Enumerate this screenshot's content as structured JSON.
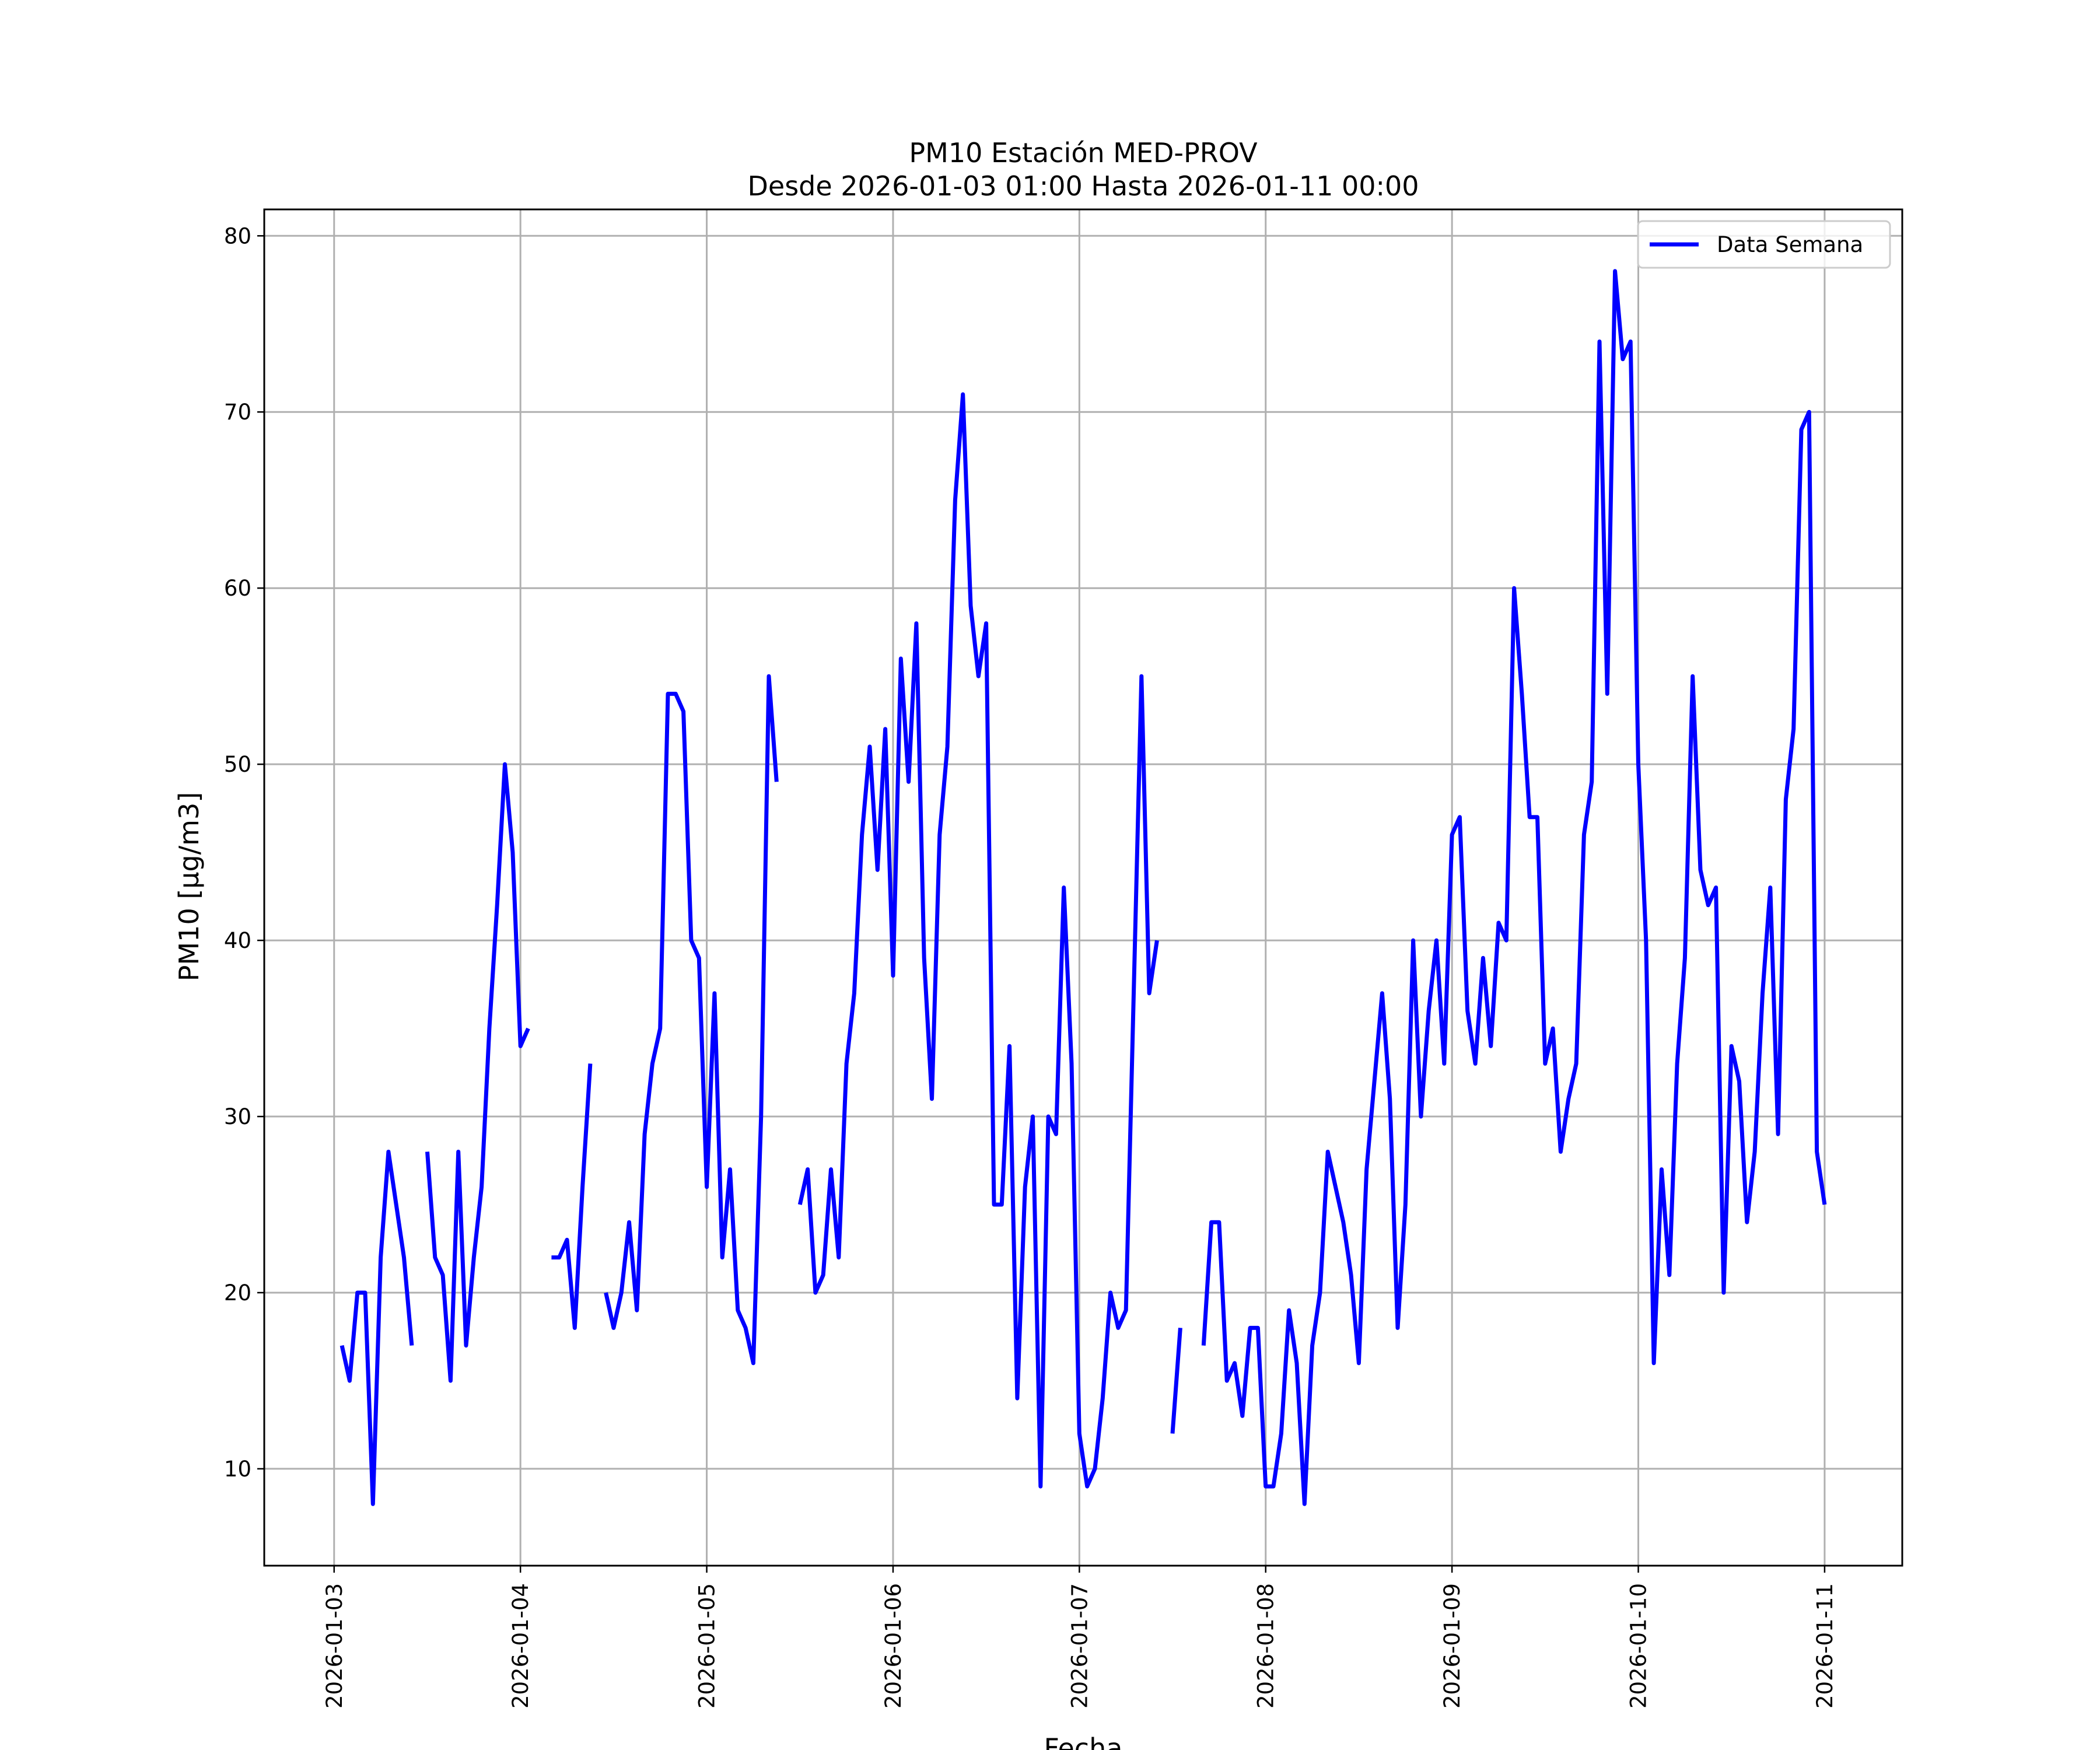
{
  "chart_data": {
    "type": "line",
    "title": "PM10 Estación MED-PROV",
    "subtitle": "Desde 2026-01-03 01:00 Hasta 2026-01-11 00:00",
    "xlabel": "Fecha",
    "ylabel": "PM10 [μg/m3]",
    "x_ticks": [
      "2026-01-03",
      "2026-01-04",
      "2026-01-05",
      "2026-01-06",
      "2026-01-07",
      "2026-01-08",
      "2026-01-09",
      "2026-01-10",
      "2026-01-11"
    ],
    "y_ticks": [
      10,
      20,
      30,
      40,
      50,
      60,
      70,
      80
    ],
    "xlim": [
      "2026-01-02 15:00",
      "2026-01-11 10:00"
    ],
    "ylim": [
      4.5,
      81.5
    ],
    "grid": true,
    "legend_position": "top-right",
    "line_color": "#0000ff",
    "series": [
      {
        "name": "Data Semana",
        "segments": [
          [
            [
              "2026-01-03 01:00",
              17
            ],
            [
              "2026-01-03 02:00",
              15
            ],
            [
              "2026-01-03 03:00",
              20
            ],
            [
              "2026-01-03 04:00",
              20
            ],
            [
              "2026-01-03 05:00",
              8
            ],
            [
              "2026-01-03 06:00",
              22
            ],
            [
              "2026-01-03 07:00",
              28
            ],
            [
              "2026-01-03 08:00",
              25
            ],
            [
              "2026-01-03 09:00",
              22
            ],
            [
              "2026-01-03 10:00",
              17
            ]
          ],
          [
            [
              "2026-01-03 12:00",
              28
            ],
            [
              "2026-01-03 13:00",
              22
            ],
            [
              "2026-01-03 14:00",
              21
            ],
            [
              "2026-01-03 15:00",
              15
            ],
            [
              "2026-01-03 16:00",
              28
            ],
            [
              "2026-01-03 17:00",
              17
            ],
            [
              "2026-01-03 18:00",
              22
            ],
            [
              "2026-01-03 19:00",
              26
            ],
            [
              "2026-01-03 20:00",
              35
            ],
            [
              "2026-01-03 21:00",
              42
            ],
            [
              "2026-01-03 22:00",
              50
            ],
            [
              "2026-01-03 23:00",
              45
            ],
            [
              "2026-01-04 00:00",
              34
            ],
            [
              "2026-01-04 01:00",
              35
            ]
          ],
          [
            [
              "2026-01-04 04:00",
              22
            ],
            [
              "2026-01-04 05:00",
              22
            ],
            [
              "2026-01-04 06:00",
              23
            ],
            [
              "2026-01-04 07:00",
              18
            ],
            [
              "2026-01-04 08:00",
              26
            ],
            [
              "2026-01-04 09:00",
              33
            ]
          ],
          [
            [
              "2026-01-04 11:00",
              20
            ],
            [
              "2026-01-04 12:00",
              18
            ],
            [
              "2026-01-04 13:00",
              20
            ],
            [
              "2026-01-04 14:00",
              24
            ],
            [
              "2026-01-04 15:00",
              19
            ],
            [
              "2026-01-04 16:00",
              29
            ],
            [
              "2026-01-04 17:00",
              33
            ],
            [
              "2026-01-04 18:00",
              35
            ],
            [
              "2026-01-04 19:00",
              54
            ],
            [
              "2026-01-04 20:00",
              54
            ],
            [
              "2026-01-04 21:00",
              53
            ],
            [
              "2026-01-04 22:00",
              40
            ],
            [
              "2026-01-04 23:00",
              39
            ],
            [
              "2026-01-05 00:00",
              26
            ],
            [
              "2026-01-05 01:00",
              37
            ],
            [
              "2026-01-05 02:00",
              22
            ],
            [
              "2026-01-05 03:00",
              27
            ],
            [
              "2026-01-05 04:00",
              19
            ],
            [
              "2026-01-05 05:00",
              18
            ],
            [
              "2026-01-05 06:00",
              16
            ],
            [
              "2026-01-05 07:00",
              30
            ],
            [
              "2026-01-05 08:00",
              55
            ],
            [
              "2026-01-05 09:00",
              49
            ]
          ],
          [
            [
              "2026-01-05 12:00",
              25
            ],
            [
              "2026-01-05 13:00",
              27
            ],
            [
              "2026-01-05 14:00",
              20
            ],
            [
              "2026-01-05 15:00",
              21
            ],
            [
              "2026-01-05 16:00",
              27
            ],
            [
              "2026-01-05 17:00",
              22
            ],
            [
              "2026-01-05 18:00",
              33
            ],
            [
              "2026-01-05 19:00",
              37
            ],
            [
              "2026-01-05 20:00",
              46
            ],
            [
              "2026-01-05 21:00",
              51
            ],
            [
              "2026-01-05 22:00",
              44
            ],
            [
              "2026-01-05 23:00",
              52
            ],
            [
              "2026-01-06 00:00",
              38
            ],
            [
              "2026-01-06 01:00",
              56
            ],
            [
              "2026-01-06 02:00",
              49
            ],
            [
              "2026-01-06 03:00",
              58
            ],
            [
              "2026-01-06 04:00",
              39
            ],
            [
              "2026-01-06 05:00",
              31
            ],
            [
              "2026-01-06 06:00",
              46
            ],
            [
              "2026-01-06 07:00",
              51
            ],
            [
              "2026-01-06 08:00",
              65
            ],
            [
              "2026-01-06 09:00",
              71
            ],
            [
              "2026-01-06 10:00",
              59
            ],
            [
              "2026-01-06 11:00",
              55
            ],
            [
              "2026-01-06 12:00",
              58
            ],
            [
              "2026-01-06 13:00",
              25
            ],
            [
              "2026-01-06 14:00",
              25
            ],
            [
              "2026-01-06 15:00",
              34
            ],
            [
              "2026-01-06 16:00",
              14
            ],
            [
              "2026-01-06 17:00",
              26
            ],
            [
              "2026-01-06 18:00",
              30
            ],
            [
              "2026-01-06 19:00",
              9
            ],
            [
              "2026-01-06 20:00",
              30
            ],
            [
              "2026-01-06 21:00",
              29
            ],
            [
              "2026-01-06 22:00",
              43
            ],
            [
              "2026-01-06 23:00",
              33
            ],
            [
              "2026-01-07 00:00",
              12
            ],
            [
              "2026-01-07 01:00",
              9
            ],
            [
              "2026-01-07 02:00",
              10
            ],
            [
              "2026-01-07 03:00",
              14
            ],
            [
              "2026-01-07 04:00",
              20
            ],
            [
              "2026-01-07 05:00",
              18
            ],
            [
              "2026-01-07 06:00",
              19
            ],
            [
              "2026-01-07 07:00",
              37
            ],
            [
              "2026-01-07 08:00",
              55
            ],
            [
              "2026-01-07 09:00",
              37
            ],
            [
              "2026-01-07 10:00",
              40
            ]
          ],
          [
            [
              "2026-01-07 12:00",
              12
            ],
            [
              "2026-01-07 13:00",
              18
            ]
          ],
          [
            [
              "2026-01-07 16:00",
              17
            ],
            [
              "2026-01-07 17:00",
              24
            ],
            [
              "2026-01-07 18:00",
              24
            ],
            [
              "2026-01-07 19:00",
              15
            ],
            [
              "2026-01-07 20:00",
              16
            ],
            [
              "2026-01-07 21:00",
              13
            ],
            [
              "2026-01-07 22:00",
              18
            ],
            [
              "2026-01-07 23:00",
              18
            ],
            [
              "2026-01-08 00:00",
              9
            ],
            [
              "2026-01-08 01:00",
              9
            ],
            [
              "2026-01-08 02:00",
              12
            ],
            [
              "2026-01-08 03:00",
              19
            ],
            [
              "2026-01-08 04:00",
              16
            ],
            [
              "2026-01-08 05:00",
              8
            ],
            [
              "2026-01-08 06:00",
              17
            ],
            [
              "2026-01-08 07:00",
              20
            ],
            [
              "2026-01-08 08:00",
              28
            ],
            [
              "2026-01-08 09:00",
              26
            ],
            [
              "2026-01-08 10:00",
              24
            ],
            [
              "2026-01-08 11:00",
              21
            ],
            [
              "2026-01-08 12:00",
              16
            ],
            [
              "2026-01-08 13:00",
              27
            ],
            [
              "2026-01-08 14:00",
              32
            ],
            [
              "2026-01-08 15:00",
              37
            ],
            [
              "2026-01-08 16:00",
              31
            ],
            [
              "2026-01-08 17:00",
              18
            ],
            [
              "2026-01-08 18:00",
              25
            ],
            [
              "2026-01-08 19:00",
              40
            ],
            [
              "2026-01-08 20:00",
              30
            ],
            [
              "2026-01-08 21:00",
              36
            ],
            [
              "2026-01-08 22:00",
              40
            ],
            [
              "2026-01-08 23:00",
              33
            ],
            [
              "2026-01-09 00:00",
              46
            ],
            [
              "2026-01-09 01:00",
              47
            ],
            [
              "2026-01-09 02:00",
              36
            ],
            [
              "2026-01-09 03:00",
              33
            ],
            [
              "2026-01-09 04:00",
              39
            ],
            [
              "2026-01-09 05:00",
              34
            ],
            [
              "2026-01-09 06:00",
              41
            ],
            [
              "2026-01-09 07:00",
              40
            ],
            [
              "2026-01-09 08:00",
              60
            ],
            [
              "2026-01-09 09:00",
              54
            ],
            [
              "2026-01-09 10:00",
              47
            ],
            [
              "2026-01-09 11:00",
              47
            ],
            [
              "2026-01-09 12:00",
              33
            ],
            [
              "2026-01-09 13:00",
              35
            ],
            [
              "2026-01-09 14:00",
              28
            ],
            [
              "2026-01-09 15:00",
              31
            ],
            [
              "2026-01-09 16:00",
              33
            ],
            [
              "2026-01-09 17:00",
              46
            ],
            [
              "2026-01-09 18:00",
              49
            ],
            [
              "2026-01-09 19:00",
              74
            ],
            [
              "2026-01-09 20:00",
              54
            ],
            [
              "2026-01-09 21:00",
              78
            ],
            [
              "2026-01-09 22:00",
              73
            ],
            [
              "2026-01-09 23:00",
              74
            ],
            [
              "2026-01-10 00:00",
              50
            ],
            [
              "2026-01-10 01:00",
              40
            ],
            [
              "2026-01-10 02:00",
              16
            ],
            [
              "2026-01-10 03:00",
              27
            ],
            [
              "2026-01-10 04:00",
              21
            ],
            [
              "2026-01-10 05:00",
              33
            ],
            [
              "2026-01-10 06:00",
              39
            ],
            [
              "2026-01-10 07:00",
              55
            ],
            [
              "2026-01-10 08:00",
              44
            ],
            [
              "2026-01-10 09:00",
              42
            ],
            [
              "2026-01-10 10:00",
              43
            ],
            [
              "2026-01-10 11:00",
              20
            ],
            [
              "2026-01-10 12:00",
              34
            ],
            [
              "2026-01-10 13:00",
              32
            ],
            [
              "2026-01-10 14:00",
              24
            ],
            [
              "2026-01-10 15:00",
              28
            ],
            [
              "2026-01-10 16:00",
              37
            ],
            [
              "2026-01-10 17:00",
              43
            ],
            [
              "2026-01-10 18:00",
              29
            ],
            [
              "2026-01-10 19:00",
              48
            ],
            [
              "2026-01-10 20:00",
              52
            ],
            [
              "2026-01-10 21:00",
              69
            ],
            [
              "2026-01-10 22:00",
              70
            ],
            [
              "2026-01-10 23:00",
              28
            ],
            [
              "2026-01-11 00:00",
              25
            ]
          ]
        ]
      }
    ]
  }
}
